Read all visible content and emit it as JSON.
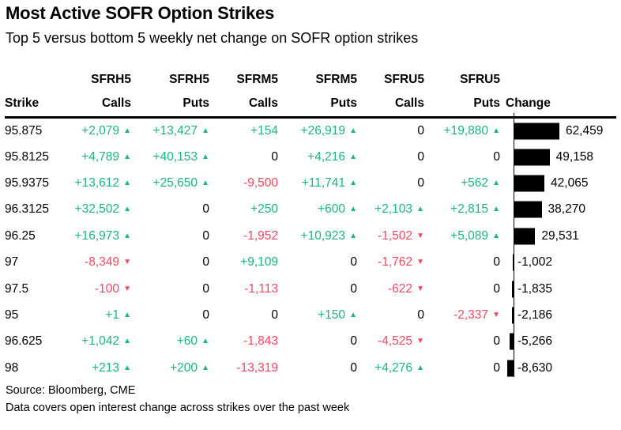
{
  "title": "Most Active SOFR Option Strikes",
  "subtitle": "Top 5 versus bottom 5 weekly net change on SOFR option strikes",
  "colors": {
    "positive": "#1bb57d",
    "negative": "#fa465d",
    "bar": "#000000",
    "text": "#000000",
    "background": "#ffffff"
  },
  "table": {
    "group_headers": [
      "SFRH5",
      "SFRH5",
      "SFRM5",
      "SFRM5",
      "SFRU5",
      "SFRU5"
    ],
    "sub_headers": [
      "Strike",
      "Calls",
      "Puts",
      "Calls",
      "Puts",
      "Calls",
      "Puts",
      "Change"
    ],
    "max_change": 62459,
    "rows": [
      {
        "strike": "95.875",
        "cells": [
          {
            "text": "+2,079",
            "tone": "pos",
            "arrow": "up"
          },
          {
            "text": "+13,427",
            "tone": "pos",
            "arrow": "up"
          },
          {
            "text": "+154",
            "tone": "pos",
            "arrow": null
          },
          {
            "text": "+26,919",
            "tone": "pos",
            "arrow": "up"
          },
          {
            "text": "0",
            "tone": "zero",
            "arrow": null
          },
          {
            "text": "+19,880",
            "tone": "pos",
            "arrow": "up"
          }
        ],
        "change": 62459,
        "change_label": "62,459"
      },
      {
        "strike": "95.8125",
        "cells": [
          {
            "text": "+4,789",
            "tone": "pos",
            "arrow": "up"
          },
          {
            "text": "+40,153",
            "tone": "pos",
            "arrow": "up"
          },
          {
            "text": "0",
            "tone": "zero",
            "arrow": null
          },
          {
            "text": "+4,216",
            "tone": "pos",
            "arrow": "up"
          },
          {
            "text": "0",
            "tone": "zero",
            "arrow": null
          },
          {
            "text": "0",
            "tone": "zero",
            "arrow": null
          }
        ],
        "change": 49158,
        "change_label": "49,158"
      },
      {
        "strike": "95.9375",
        "cells": [
          {
            "text": "+13,612",
            "tone": "pos",
            "arrow": "up"
          },
          {
            "text": "+25,650",
            "tone": "pos",
            "arrow": "up"
          },
          {
            "text": "-9,500",
            "tone": "neg",
            "arrow": null
          },
          {
            "text": "+11,741",
            "tone": "pos",
            "arrow": "up"
          },
          {
            "text": "0",
            "tone": "zero",
            "arrow": null
          },
          {
            "text": "+562",
            "tone": "pos",
            "arrow": "up"
          }
        ],
        "change": 42065,
        "change_label": "42,065"
      },
      {
        "strike": "96.3125",
        "cells": [
          {
            "text": "+32,502",
            "tone": "pos",
            "arrow": "up"
          },
          {
            "text": "0",
            "tone": "zero",
            "arrow": null
          },
          {
            "text": "+250",
            "tone": "pos",
            "arrow": null
          },
          {
            "text": "+600",
            "tone": "pos",
            "arrow": "up"
          },
          {
            "text": "+2,103",
            "tone": "pos",
            "arrow": "up"
          },
          {
            "text": "+2,815",
            "tone": "pos",
            "arrow": "up"
          }
        ],
        "change": 38270,
        "change_label": "38,270"
      },
      {
        "strike": "96.25",
        "cells": [
          {
            "text": "+16,973",
            "tone": "pos",
            "arrow": "up"
          },
          {
            "text": "0",
            "tone": "zero",
            "arrow": null
          },
          {
            "text": "-1,952",
            "tone": "neg",
            "arrow": null
          },
          {
            "text": "+10,923",
            "tone": "pos",
            "arrow": "up"
          },
          {
            "text": "-1,502",
            "tone": "neg",
            "arrow": "down"
          },
          {
            "text": "+5,089",
            "tone": "pos",
            "arrow": "up"
          }
        ],
        "change": 29531,
        "change_label": "29,531"
      },
      {
        "strike": "97",
        "cells": [
          {
            "text": "-8,349",
            "tone": "neg",
            "arrow": "down"
          },
          {
            "text": "0",
            "tone": "zero",
            "arrow": null
          },
          {
            "text": "+9,109",
            "tone": "pos",
            "arrow": null
          },
          {
            "text": "0",
            "tone": "zero",
            "arrow": null
          },
          {
            "text": "-1,762",
            "tone": "neg",
            "arrow": "down"
          },
          {
            "text": "0",
            "tone": "zero",
            "arrow": null
          }
        ],
        "change": -1002,
        "change_label": "-1,002"
      },
      {
        "strike": "97.5",
        "cells": [
          {
            "text": "-100",
            "tone": "neg",
            "arrow": "down"
          },
          {
            "text": "0",
            "tone": "zero",
            "arrow": null
          },
          {
            "text": "-1,113",
            "tone": "neg",
            "arrow": null
          },
          {
            "text": "0",
            "tone": "zero",
            "arrow": null
          },
          {
            "text": "-622",
            "tone": "neg",
            "arrow": "down"
          },
          {
            "text": "0",
            "tone": "zero",
            "arrow": null
          }
        ],
        "change": -1835,
        "change_label": "-1,835"
      },
      {
        "strike": "95",
        "cells": [
          {
            "text": "+1",
            "tone": "pos",
            "arrow": "up"
          },
          {
            "text": "0",
            "tone": "zero",
            "arrow": null
          },
          {
            "text": "0",
            "tone": "zero",
            "arrow": null
          },
          {
            "text": "+150",
            "tone": "pos",
            "arrow": "up"
          },
          {
            "text": "0",
            "tone": "zero",
            "arrow": null
          },
          {
            "text": "-2,337",
            "tone": "neg",
            "arrow": "down"
          }
        ],
        "change": -2186,
        "change_label": "-2,186"
      },
      {
        "strike": "96.625",
        "cells": [
          {
            "text": "+1,042",
            "tone": "pos",
            "arrow": "up"
          },
          {
            "text": "+60",
            "tone": "pos",
            "arrow": "up"
          },
          {
            "text": "-1,843",
            "tone": "neg",
            "arrow": null
          },
          {
            "text": "0",
            "tone": "zero",
            "arrow": null
          },
          {
            "text": "-4,525",
            "tone": "neg",
            "arrow": "down"
          },
          {
            "text": "0",
            "tone": "zero",
            "arrow": null
          }
        ],
        "change": -5266,
        "change_label": "-5,266"
      },
      {
        "strike": "98",
        "cells": [
          {
            "text": "+213",
            "tone": "pos",
            "arrow": "up"
          },
          {
            "text": "+200",
            "tone": "pos",
            "arrow": "up"
          },
          {
            "text": "-13,319",
            "tone": "neg",
            "arrow": null
          },
          {
            "text": "0",
            "tone": "zero",
            "arrow": null
          },
          {
            "text": "+4,276",
            "tone": "pos",
            "arrow": "up"
          },
          {
            "text": "0",
            "tone": "zero",
            "arrow": null
          }
        ],
        "change": -8630,
        "change_label": "-8,630"
      }
    ]
  },
  "footer": {
    "source": "Source: Bloomberg, CME",
    "note": "Data covers open interest change across strikes over the past week"
  },
  "chart_data": {
    "type": "table",
    "title": "Most Active SOFR Option Strikes",
    "subtitle": "Top 5 versus bottom 5 weekly net change on SOFR option strikes",
    "columns": [
      "Strike",
      "SFRH5 Calls",
      "SFRH5 Puts",
      "SFRM5 Calls",
      "SFRM5 Puts",
      "SFRU5 Calls",
      "SFRU5 Puts",
      "Change"
    ],
    "rows": [
      [
        "95.875",
        2079,
        13427,
        154,
        26919,
        0,
        19880,
        62459
      ],
      [
        "95.8125",
        4789,
        40153,
        0,
        4216,
        0,
        0,
        49158
      ],
      [
        "95.9375",
        13612,
        25650,
        -9500,
        11741,
        0,
        562,
        42065
      ],
      [
        "96.3125",
        32502,
        0,
        250,
        600,
        2103,
        2815,
        38270
      ],
      [
        "96.25",
        16973,
        0,
        -1952,
        10923,
        -1502,
        5089,
        29531
      ],
      [
        "97",
        -8349,
        0,
        9109,
        0,
        -1762,
        0,
        -1002
      ],
      [
        "97.5",
        -100,
        0,
        -1113,
        0,
        -622,
        0,
        -1835
      ],
      [
        "95",
        1,
        0,
        0,
        150,
        0,
        -2337,
        -2186
      ],
      [
        "96.625",
        1042,
        60,
        -1843,
        0,
        -4525,
        0,
        -5266
      ],
      [
        "98",
        213,
        200,
        -13319,
        0,
        4276,
        0,
        -8630
      ]
    ],
    "bar_column": "Change",
    "bar_axis_max": 62459,
    "bar_color": "#000000",
    "positive_color": "#1bb57d",
    "negative_color": "#fa465d",
    "legend": "none",
    "grid": "none"
  }
}
